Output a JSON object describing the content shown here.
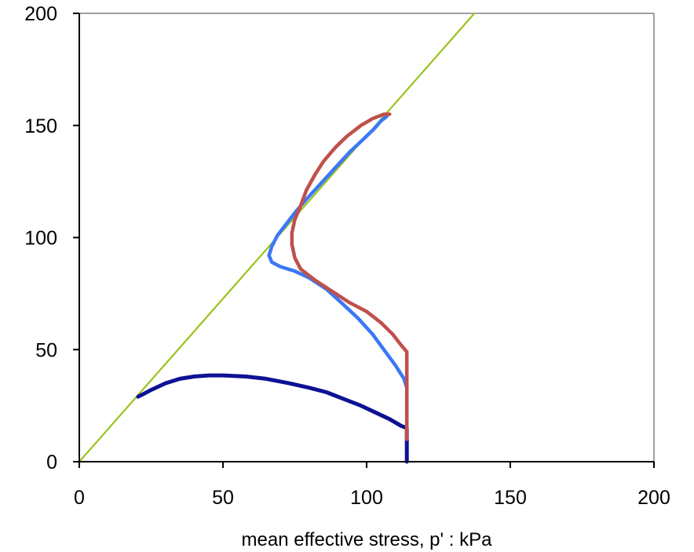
{
  "chart_data": {
    "type": "line",
    "title": "",
    "xlabel": "mean effective stress, p' : kPa",
    "ylabel": "",
    "xlim": [
      0,
      200
    ],
    "ylim": [
      0,
      200
    ],
    "x_ticks": [
      "0",
      "50",
      "100",
      "150",
      "200"
    ],
    "y_ticks": [
      "0",
      "50",
      "100",
      "150",
      "200"
    ],
    "grid": false,
    "legend": "none",
    "colors": {
      "csl": "#99c31e",
      "dark_blue": "#0d1194",
      "light_blue": "#3c78f5",
      "red": "#bf504b",
      "axis": "#808080"
    },
    "series": [
      {
        "color_key": "csl",
        "points": [
          [
            0,
            0
          ],
          [
            137.5,
            200
          ]
        ]
      },
      {
        "color_key": "dark_blue",
        "points": [
          [
            114,
            0
          ],
          [
            114,
            5
          ],
          [
            114,
            10
          ],
          [
            114,
            15
          ],
          [
            112,
            16
          ],
          [
            108,
            19
          ],
          [
            103,
            22
          ],
          [
            98,
            25
          ],
          [
            92,
            28
          ],
          [
            86,
            31
          ],
          [
            80,
            33
          ],
          [
            73,
            35
          ],
          [
            65,
            37
          ],
          [
            58,
            38
          ],
          [
            50,
            38.5
          ],
          [
            45,
            38.5
          ],
          [
            40,
            38
          ],
          [
            35,
            37
          ],
          [
            30,
            35
          ],
          [
            25,
            32
          ],
          [
            22,
            30
          ],
          [
            20.5,
            29
          ]
        ]
      },
      {
        "color_key": "light_blue",
        "points": [
          [
            114,
            13
          ],
          [
            114,
            25
          ],
          [
            114,
            33
          ],
          [
            113,
            37
          ],
          [
            110,
            43
          ],
          [
            106,
            50
          ],
          [
            102,
            57
          ],
          [
            97,
            64
          ],
          [
            92,
            70
          ],
          [
            86,
            77
          ],
          [
            80,
            82
          ],
          [
            75,
            85
          ],
          [
            70,
            87
          ],
          [
            67,
            89
          ],
          [
            66,
            92
          ],
          [
            67,
            96
          ],
          [
            69,
            101
          ],
          [
            72,
            106
          ],
          [
            75,
            111
          ],
          [
            79,
            117
          ],
          [
            84,
            124
          ],
          [
            89,
            131
          ],
          [
            94,
            138
          ],
          [
            99,
            144
          ],
          [
            103,
            149
          ],
          [
            105,
            152
          ],
          [
            107,
            154
          ]
        ]
      },
      {
        "color_key": "red",
        "points": [
          [
            114,
            10
          ],
          [
            114,
            20
          ],
          [
            114,
            30
          ],
          [
            114,
            40
          ],
          [
            114,
            49
          ],
          [
            112,
            52
          ],
          [
            109,
            57
          ],
          [
            105,
            62
          ],
          [
            100,
            67
          ],
          [
            94,
            71
          ],
          [
            88,
            76
          ],
          [
            82,
            81
          ],
          [
            77,
            86
          ],
          [
            75,
            91
          ],
          [
            74,
            97
          ],
          [
            74,
            102
          ],
          [
            75,
            108
          ],
          [
            77,
            114
          ],
          [
            79,
            121
          ],
          [
            82,
            128
          ],
          [
            85,
            134
          ],
          [
            89,
            140
          ],
          [
            93,
            145
          ],
          [
            98,
            150
          ],
          [
            102,
            153
          ],
          [
            106,
            155
          ],
          [
            108,
            155
          ]
        ]
      }
    ]
  }
}
